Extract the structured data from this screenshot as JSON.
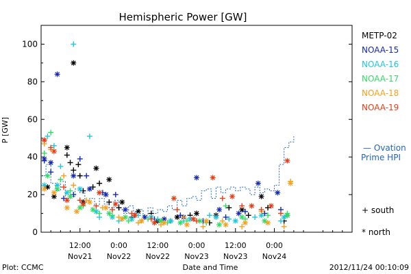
{
  "chart_data": {
    "type": "scatter",
    "title": "Hemispheric Power [GW]",
    "ylabel": "P [GW]",
    "xlabel": "Date and Time",
    "ylim": [
      0,
      110
    ],
    "yticks": [
      0,
      20,
      40,
      60,
      80,
      100
    ],
    "xlim_hours": [
      0,
      96
    ],
    "xticks": [
      {
        "hour": 12,
        "time": "12:00",
        "date": "Nov21"
      },
      {
        "hour": 24,
        "time": "0:00",
        "date": "Nov22"
      },
      {
        "hour": 36,
        "time": "12:00",
        "date": "Nov22"
      },
      {
        "hour": 48,
        "time": "0:00",
        "date": "Nov23"
      },
      {
        "hour": 60,
        "time": "12:00",
        "date": "Nov23"
      },
      {
        "hour": 72,
        "time": "0:00",
        "date": "Nov24"
      }
    ],
    "footer_left": "Plot: CCMC",
    "footer_right": "2012/11/24 00:10:09",
    "markers_legend": {
      "south": "+ south",
      "north": "* north"
    },
    "ovation_label_1": "— Ovation",
    "ovation_label_2": "Prime HPI",
    "ovation_color": "#1e64c8",
    "series": [
      {
        "name": "METP-02",
        "color": "#000000",
        "south": [
          [
            8,
            41
          ],
          [
            9,
            37
          ],
          [
            10,
            33
          ],
          [
            11.5,
            36
          ],
          [
            12,
            30
          ],
          [
            13,
            22
          ],
          [
            16,
            24
          ],
          [
            18,
            26
          ],
          [
            21,
            16
          ],
          [
            24,
            13
          ],
          [
            28,
            8
          ],
          [
            34,
            10
          ],
          [
            40,
            6
          ],
          [
            46,
            9
          ],
          [
            52,
            5
          ],
          [
            58,
            13
          ],
          [
            64,
            9
          ],
          [
            70,
            13
          ],
          [
            75,
            6
          ]
        ],
        "north": [
          [
            2,
            24
          ],
          [
            4,
            19
          ],
          [
            8,
            45
          ],
          [
            10,
            90
          ],
          [
            13,
            16
          ],
          [
            17,
            34
          ],
          [
            21,
            28
          ],
          [
            25,
            16
          ],
          [
            30,
            11
          ],
          [
            36,
            6
          ],
          [
            42,
            8
          ],
          [
            48,
            10
          ],
          [
            54,
            9
          ],
          [
            62,
            12
          ],
          [
            68,
            19
          ],
          [
            76,
            9
          ]
        ]
      },
      {
        "name": "NOAA-15",
        "color": "#1428b4",
        "south": [
          [
            1,
            38
          ],
          [
            3,
            32
          ],
          [
            7,
            18
          ],
          [
            10,
            20
          ],
          [
            12,
            39
          ],
          [
            14,
            30
          ],
          [
            19,
            21
          ],
          [
            23,
            20
          ],
          [
            29,
            9
          ],
          [
            35,
            7
          ],
          [
            43,
            9
          ],
          [
            50,
            6
          ],
          [
            57,
            8
          ],
          [
            63,
            11
          ],
          [
            69,
            10
          ],
          [
            74,
            12
          ]
        ],
        "north": [
          [
            1,
            39
          ],
          [
            3,
            37
          ],
          [
            5,
            84
          ],
          [
            10,
            30
          ],
          [
            15,
            23
          ],
          [
            20,
            20
          ],
          [
            26,
            12
          ],
          [
            32,
            8
          ],
          [
            38,
            7
          ],
          [
            44,
            8
          ],
          [
            48,
            29
          ],
          [
            55,
            12
          ],
          [
            61,
            10
          ],
          [
            67,
            26
          ],
          [
            73,
            21
          ]
        ]
      },
      {
        "name": "NOAA-16",
        "color": "#1ec8dc",
        "south": [
          [
            2,
            51
          ],
          [
            4,
            46
          ],
          [
            6,
            35
          ],
          [
            10,
            100
          ],
          [
            15,
            51
          ],
          [
            18,
            8
          ],
          [
            24,
            6
          ],
          [
            30,
            9
          ],
          [
            36,
            7
          ],
          [
            44,
            6
          ],
          [
            52,
            9
          ],
          [
            58,
            7
          ],
          [
            66,
            8
          ],
          [
            74,
            6
          ]
        ],
        "north": [
          [
            1,
            25
          ],
          [
            5,
            25
          ],
          [
            8,
            21
          ],
          [
            12,
            23
          ],
          [
            17,
            11
          ],
          [
            22,
            8
          ],
          [
            28,
            7
          ],
          [
            34,
            8
          ],
          [
            40,
            6
          ],
          [
            46,
            7
          ],
          [
            54,
            8
          ],
          [
            60,
            6
          ],
          [
            68,
            9
          ],
          [
            75,
            8
          ]
        ]
      },
      {
        "name": "NOAA-17",
        "color": "#32dc64",
        "south": [
          [
            1,
            42
          ],
          [
            3,
            53
          ],
          [
            6,
            28
          ],
          [
            9,
            22
          ],
          [
            13,
            14
          ],
          [
            18,
            10
          ],
          [
            22,
            9
          ],
          [
            27,
            6
          ],
          [
            33,
            7
          ],
          [
            39,
            5
          ],
          [
            45,
            6
          ],
          [
            51,
            5
          ],
          [
            57,
            14
          ],
          [
            63,
            7
          ],
          [
            70,
            9
          ],
          [
            76,
            10
          ]
        ],
        "north": [
          [
            2,
            30
          ],
          [
            5,
            23
          ],
          [
            9,
            19
          ],
          [
            12,
            13
          ],
          [
            16,
            12
          ],
          [
            21,
            10
          ],
          [
            26,
            8
          ],
          [
            31,
            6
          ],
          [
            37,
            6
          ],
          [
            43,
            5
          ],
          [
            49,
            6
          ],
          [
            55,
            4
          ],
          [
            62,
            8
          ],
          [
            69,
            6
          ],
          [
            76,
            9
          ]
        ]
      },
      {
        "name": "NOAA-18",
        "color": "#f5a01e",
        "south": [
          [
            1,
            47
          ],
          [
            3,
            44
          ],
          [
            7,
            30
          ],
          [
            10,
            25
          ],
          [
            14,
            17
          ],
          [
            19,
            13
          ],
          [
            24,
            8
          ],
          [
            30,
            5
          ],
          [
            37,
            4
          ],
          [
            44,
            8
          ],
          [
            50,
            3
          ],
          [
            56,
            6
          ],
          [
            62,
            3
          ],
          [
            68,
            11
          ],
          [
            75,
            3
          ],
          [
            77,
            27
          ]
        ],
        "north": [
          [
            1,
            23
          ],
          [
            4,
            21
          ],
          [
            8,
            13
          ],
          [
            11,
            11
          ],
          [
            15,
            16
          ],
          [
            20,
            13
          ],
          [
            25,
            7
          ],
          [
            31,
            6
          ],
          [
            38,
            5
          ],
          [
            45,
            4
          ],
          [
            51,
            6
          ],
          [
            57,
            4
          ],
          [
            63,
            5
          ],
          [
            70,
            5
          ],
          [
            77,
            26
          ]
        ]
      },
      {
        "name": "NOAA-19",
        "color": "#e63c14",
        "south": [
          [
            1,
            49
          ],
          [
            3,
            45
          ],
          [
            7,
            24
          ],
          [
            12,
            17
          ],
          [
            17,
            14
          ],
          [
            22,
            12
          ],
          [
            28,
            10
          ],
          [
            34,
            7
          ],
          [
            42,
            12
          ],
          [
            48,
            6
          ],
          [
            56,
            18
          ],
          [
            62,
            14
          ],
          [
            68,
            12
          ],
          [
            74,
            10
          ]
        ],
        "north": [
          [
            1,
            49
          ],
          [
            4,
            43
          ],
          [
            8,
            17
          ],
          [
            13,
            15
          ],
          [
            18,
            21
          ],
          [
            23,
            15
          ],
          [
            29,
            9
          ],
          [
            35,
            5
          ],
          [
            41,
            18
          ],
          [
            47,
            7
          ],
          [
            53,
            29
          ],
          [
            59,
            19
          ],
          [
            65,
            14
          ],
          [
            71,
            14
          ],
          [
            76,
            38
          ]
        ]
      }
    ],
    "ovation_steps": [
      [
        0,
        30
      ],
      [
        1.5,
        36
      ],
      [
        3,
        26
      ],
      [
        4.5,
        22
      ],
      [
        6,
        27
      ],
      [
        7.5,
        18
      ],
      [
        9,
        19
      ],
      [
        10.5,
        23
      ],
      [
        12,
        21
      ],
      [
        13.5,
        17
      ],
      [
        15,
        18
      ],
      [
        16.5,
        14
      ],
      [
        18,
        18
      ],
      [
        19.5,
        15
      ],
      [
        21,
        13
      ],
      [
        22.5,
        17
      ],
      [
        24,
        12
      ],
      [
        25.5,
        10
      ],
      [
        27,
        14
      ],
      [
        28.5,
        11
      ],
      [
        30,
        12
      ],
      [
        31.5,
        9
      ],
      [
        33,
        13
      ],
      [
        34.5,
        10
      ],
      [
        36,
        12
      ],
      [
        37.5,
        11
      ],
      [
        39,
        14
      ],
      [
        40.5,
        12
      ],
      [
        42,
        17
      ],
      [
        43.5,
        14
      ],
      [
        45,
        18
      ],
      [
        46.5,
        19
      ],
      [
        48,
        17
      ],
      [
        49.5,
        22
      ],
      [
        51,
        23
      ],
      [
        52.5,
        18
      ],
      [
        54,
        24
      ],
      [
        55.5,
        21
      ],
      [
        57,
        23
      ],
      [
        58.5,
        24
      ],
      [
        60,
        22
      ],
      [
        61.5,
        24
      ],
      [
        63,
        23
      ],
      [
        64.5,
        20
      ],
      [
        66,
        24
      ],
      [
        67.5,
        21
      ],
      [
        69,
        23
      ],
      [
        70.5,
        22
      ],
      [
        72,
        25
      ],
      [
        73.5,
        36
      ],
      [
        75,
        45
      ],
      [
        76.5,
        48
      ],
      [
        78,
        51
      ]
    ]
  }
}
